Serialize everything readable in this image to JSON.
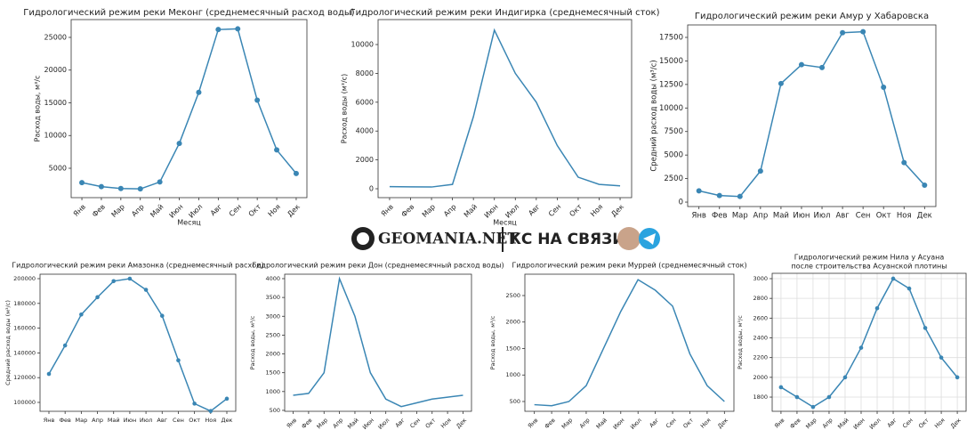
{
  "chart_data": [
    {
      "type": "line",
      "title": "Гидрологический режим реки Меконг (среднемесячный расход воды)",
      "ylabel": "Расход воды, м³/с",
      "xlabel": "Месяц",
      "markers": true,
      "grid": false,
      "color": "#3a86b4",
      "categories": [
        "Янв",
        "Фев",
        "Мар",
        "Апр",
        "Май",
        "Июн",
        "Июл",
        "Авг",
        "Сен",
        "Окт",
        "Ноя",
        "Дек"
      ],
      "values": [
        2800,
        2200,
        1900,
        1850,
        2900,
        8800,
        16600,
        26200,
        26300,
        15400,
        7800,
        4200
      ],
      "ylim": [
        510,
        27720
      ],
      "yticks": [
        5000,
        10000,
        15000,
        20000,
        25000
      ]
    },
    {
      "type": "line",
      "title": "Гидрологический режим реки Индигирка (среднемесячный сток)",
      "ylabel": "Расход воды (м³/с)",
      "xlabel": "Месяц",
      "markers": false,
      "grid": false,
      "color": "#3a86b4",
      "categories": [
        "Янв",
        "Фев",
        "Мар",
        "Апр",
        "Май",
        "Июн",
        "Июл",
        "Авг",
        "Сен",
        "Окт",
        "Ноя",
        "Дек"
      ],
      "values": [
        150,
        130,
        120,
        300,
        5000,
        11000,
        8000,
        6000,
        3000,
        800,
        300,
        200
      ],
      "ylim": [
        -617,
        11730
      ],
      "yticks": [
        0,
        2000,
        4000,
        6000,
        8000,
        10000
      ]
    },
    {
      "type": "line",
      "title": "Гидрологический режим реки Амур у Хабаровска",
      "ylabel": "Средний расход воды (м³/с)",
      "markers": true,
      "grid": false,
      "color": "#3a86b4",
      "categories": [
        "Янв",
        "Фев",
        "Мар",
        "Апр",
        "Май",
        "Июн",
        "Июл",
        "Авг",
        "Сен",
        "Окт",
        "Ноя",
        "Дек"
      ],
      "values": [
        1200,
        700,
        600,
        3300,
        12600,
        14600,
        14300,
        18000,
        18100,
        12200,
        4200,
        1800
      ],
      "ylim": [
        -470,
        18825
      ],
      "yticks": [
        0,
        2500,
        5000,
        7500,
        10000,
        12500,
        15000,
        17500
      ]
    },
    {
      "type": "line",
      "title": "Гидрологический режим реки Амазонка (среднемесячный расход)",
      "ylabel": "Средний расход воды (м³/с)",
      "markers": true,
      "grid": false,
      "color": "#3a86b4",
      "categories": [
        "Янв",
        "Фев",
        "Мар",
        "Апр",
        "Май",
        "Июн",
        "Июл",
        "Авг",
        "Сен",
        "Окт",
        "Ноя",
        "Дек"
      ],
      "values": [
        123000,
        146000,
        171000,
        185000,
        198000,
        200000,
        191000,
        170000,
        134000,
        99000,
        93000,
        103000
      ],
      "ylim": [
        92800,
        203600
      ],
      "yticks": [
        100000,
        120000,
        140000,
        160000,
        180000,
        200000
      ]
    },
    {
      "type": "line",
      "title": "Гидрологический режим реки Дон (среднемесячный расход воды)",
      "ylabel": "Расход воды, м³/с",
      "markers": false,
      "grid": false,
      "color": "#3a86b4",
      "categories": [
        "Янв",
        "Фев",
        "Мар",
        "Апр",
        "Май",
        "Июн",
        "Июл",
        "Авг",
        "Сен",
        "Окт",
        "Ноя",
        "Дек"
      ],
      "values": [
        900,
        950,
        1500,
        4000,
        3000,
        1500,
        800,
        600,
        700,
        800,
        850,
        900
      ],
      "ylim": [
        475,
        4118
      ],
      "yticks": [
        500,
        1000,
        1500,
        2000,
        2500,
        3000,
        3500,
        4000
      ]
    },
    {
      "type": "line",
      "title": "Гидрологический режим реки Муррей (среднемесячный сток)",
      "ylabel": "Расход воды, м³/с",
      "markers": false,
      "grid": false,
      "color": "#3a86b4",
      "categories": [
        "Янв",
        "Фев",
        "Мар",
        "Апр",
        "Май",
        "Июн",
        "Июл",
        "Авг",
        "Сен",
        "Окт",
        "Ноя",
        "Дек"
      ],
      "values": [
        440,
        420,
        500,
        800,
        1500,
        2200,
        2800,
        2600,
        2300,
        1400,
        800,
        500
      ],
      "ylim": [
        315,
        2903
      ],
      "yticks": [
        500,
        1000,
        1500,
        2000,
        2500
      ]
    },
    {
      "type": "line",
      "title": "Гидрологический режим Нила у Асуана",
      "subtitle": "после строительства Асуанской плотины",
      "ylabel": "Расход воды, м³/с",
      "markers": true,
      "grid": true,
      "color": "#3a86b4",
      "categories": [
        "Янв",
        "Фев",
        "Мар",
        "Апр",
        "Май",
        "Июн",
        "Июл",
        "Авг",
        "Сен",
        "Окт",
        "Ноя",
        "Дек"
      ],
      "values": [
        1900,
        1800,
        1700,
        1800,
        2000,
        2300,
        2700,
        3000,
        2900,
        2500,
        2200,
        2000
      ],
      "ylim": [
        1656,
        3054
      ],
      "yticks": [
        1800,
        2000,
        2200,
        2400,
        2600,
        2800,
        3000
      ]
    }
  ],
  "banner": {
    "site": "GEOMANIA.NET",
    "slogan": "КС НА СВЯЗИ!"
  }
}
